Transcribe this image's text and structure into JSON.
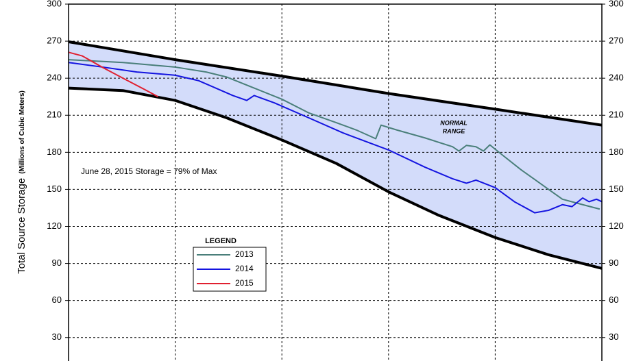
{
  "chart_data": {
    "type": "line",
    "y_label": "Total Source Storage",
    "y_label_units": "(Millions of Cubic Meters)",
    "annotation": "June 28, 2015  Storage =  79% of Max",
    "range_label": [
      "NORMAL",
      "RANGE"
    ],
    "legend_title": "LEGEND",
    "xlim": [
      0,
      5
    ],
    "xticks": [
      1,
      2,
      3,
      4
    ],
    "ylim": [
      11,
      300
    ],
    "yticks": [
      30,
      60,
      90,
      120,
      150,
      180,
      210,
      240,
      270,
      300
    ],
    "y2lim": [
      11,
      300
    ],
    "y2ticks": [
      30,
      60,
      90,
      120,
      150,
      180,
      210,
      240,
      270,
      300
    ],
    "grid": true,
    "range_color": "#d3dcfa",
    "range": {
      "upper": {
        "x": [
          0,
          1,
          2,
          3,
          4,
          5
        ],
        "values": [
          269.5,
          255,
          241.7,
          227.6,
          214.9,
          202
        ]
      },
      "lower": {
        "x": [
          0,
          0.51,
          1,
          1.48,
          2,
          2.51,
          3,
          3.47,
          4,
          4.5,
          5
        ],
        "values": [
          232,
          230,
          222,
          208,
          190,
          171,
          148,
          129,
          111,
          97,
          86
        ]
      }
    },
    "series": [
      {
        "name": "2013",
        "color": "#4a7f7a",
        "x": [
          0,
          0.51,
          1.0,
          1.29,
          1.48,
          1.74,
          2.0,
          2.25,
          2.51,
          2.7,
          2.88,
          2.93,
          3.08,
          3.34,
          3.6,
          3.66,
          3.73,
          3.82,
          3.89,
          3.95,
          4.05,
          4.24,
          4.37,
          4.5,
          4.63,
          4.82,
          4.98
        ],
        "values": [
          255,
          252.7,
          249,
          245,
          241,
          232,
          223,
          212,
          204,
          198,
          191,
          202,
          198,
          191.7,
          184.5,
          181,
          185.6,
          184.5,
          181,
          186,
          179,
          166,
          158,
          150,
          142,
          137.6,
          134
        ]
      },
      {
        "name": "2014",
        "color": "#1414e0",
        "x": [
          0,
          0.32,
          0.64,
          1.0,
          1.22,
          1.54,
          1.67,
          1.74,
          1.93,
          2.25,
          2.57,
          3.0,
          3.34,
          3.6,
          3.73,
          3.82,
          4.0,
          4.18,
          4.37,
          4.5,
          4.63,
          4.72,
          4.82,
          4.88,
          4.95,
          5
        ],
        "values": [
          252.7,
          249,
          245,
          242.4,
          238,
          226,
          222,
          226,
          220,
          208,
          195.8,
          181.9,
          168,
          158.6,
          155,
          157.5,
          151.4,
          140,
          131,
          133,
          137.6,
          136,
          143,
          140,
          142,
          140
        ]
      },
      {
        "name": "2015",
        "color": "#e02030",
        "x": [
          0,
          0.13,
          0.32,
          0.51,
          0.71,
          0.84
        ],
        "values": [
          261,
          258,
          248.7,
          240,
          231,
          225
        ]
      }
    ]
  }
}
